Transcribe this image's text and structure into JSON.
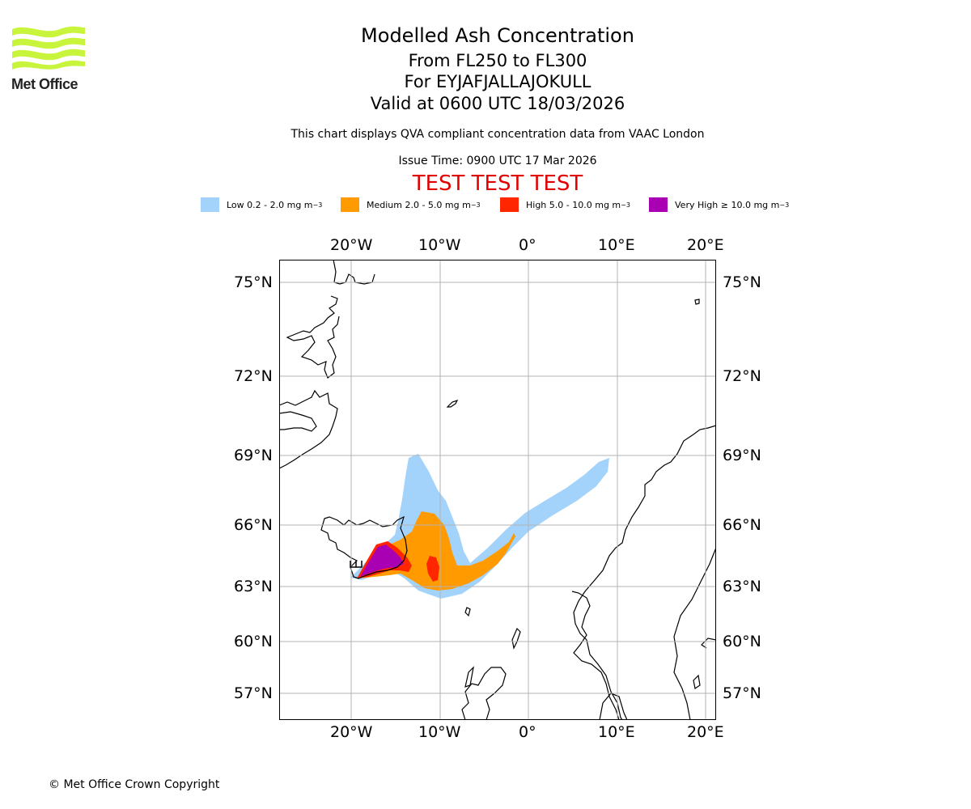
{
  "logo": {
    "text": "Met Office",
    "color": "#c8f53c"
  },
  "header": {
    "title": "Modelled Ash Concentration",
    "levels": "From FL250 to FL300",
    "volcano": "For EYJAFJALLAJOKULL",
    "valid": "Valid at 0600 UTC 18/03/2026",
    "qva_note": "This chart displays QVA compliant concentration data from VAAC London",
    "issue_time": "Issue Time: 0900 UTC 17 Mar 2026",
    "test_banner": "TEST TEST TEST"
  },
  "legend": [
    {
      "label": "Low 0.2 - 2.0 mg m",
      "color": "#a3d3fa"
    },
    {
      "label": "Medium 2.0 - 5.0 mg m",
      "color": "#ff9a00"
    },
    {
      "label": "High 5.0 - 10.0 mg m",
      "color": "#ff2600"
    },
    {
      "label": "Very High ≥ 10.0 mg m",
      "color": "#aa00b4"
    }
  ],
  "legend_exponent": "−3",
  "axes": {
    "lon_labels": [
      "20°W",
      "10°W",
      "0°",
      "10°E",
      "20°E"
    ],
    "lat_labels": [
      "75°N",
      "72°N",
      "69°N",
      "66°N",
      "63°N",
      "60°N",
      "57°N"
    ]
  },
  "footer": {
    "copyright": "© Met Office Crown Copyright"
  }
}
